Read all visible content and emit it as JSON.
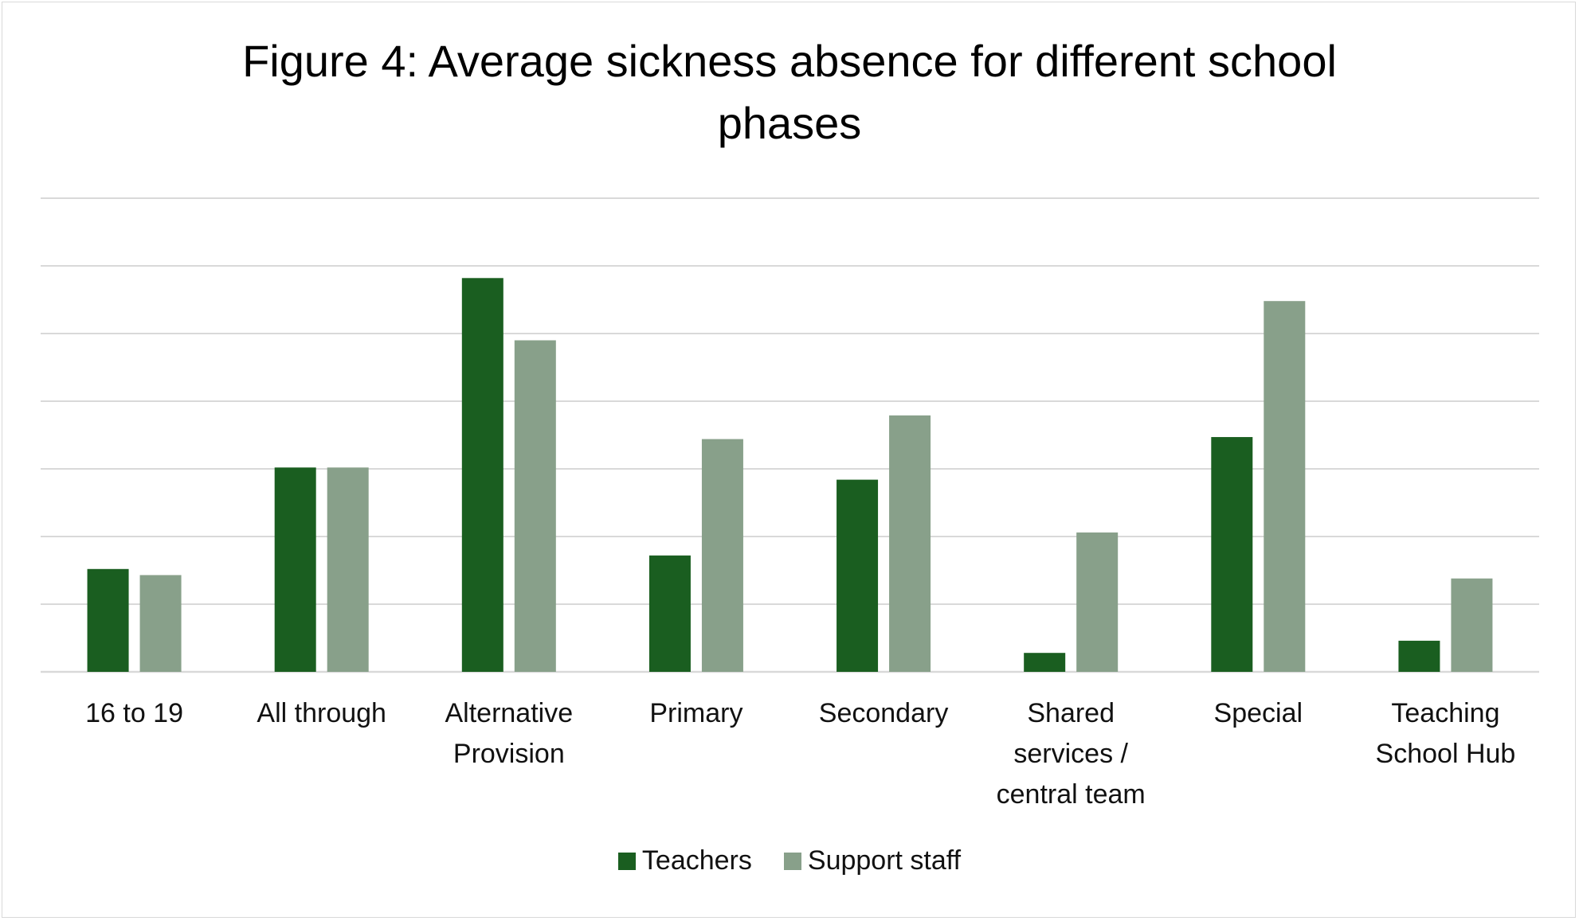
{
  "title_lines": [
    "Figure 4: Average sickness absence for different school",
    "phases"
  ],
  "chart_data": {
    "type": "bar",
    "title": "Figure 4: Average sickness absence for different school phases",
    "xlabel": "",
    "ylabel": "",
    "ylim": [
      0,
      7
    ],
    "grid": true,
    "legend_position": "bottom",
    "categories": [
      [
        "16 to 19"
      ],
      [
        "All through"
      ],
      [
        "Alternative",
        "Provision"
      ],
      [
        "Primary"
      ],
      [
        "Secondary"
      ],
      [
        "Shared",
        "services /",
        "central team"
      ],
      [
        "Special"
      ],
      [
        "Teaching",
        "School Hub"
      ]
    ],
    "series": [
      {
        "name": "Teachers",
        "color": "#1a5e20",
        "values": [
          1.52,
          3.02,
          5.82,
          1.72,
          2.84,
          0.28,
          3.47,
          0.46
        ]
      },
      {
        "name": "Support staff",
        "color": "#88a08a",
        "values": [
          1.43,
          3.02,
          4.9,
          3.44,
          3.79,
          2.06,
          5.48,
          1.38
        ]
      }
    ]
  }
}
